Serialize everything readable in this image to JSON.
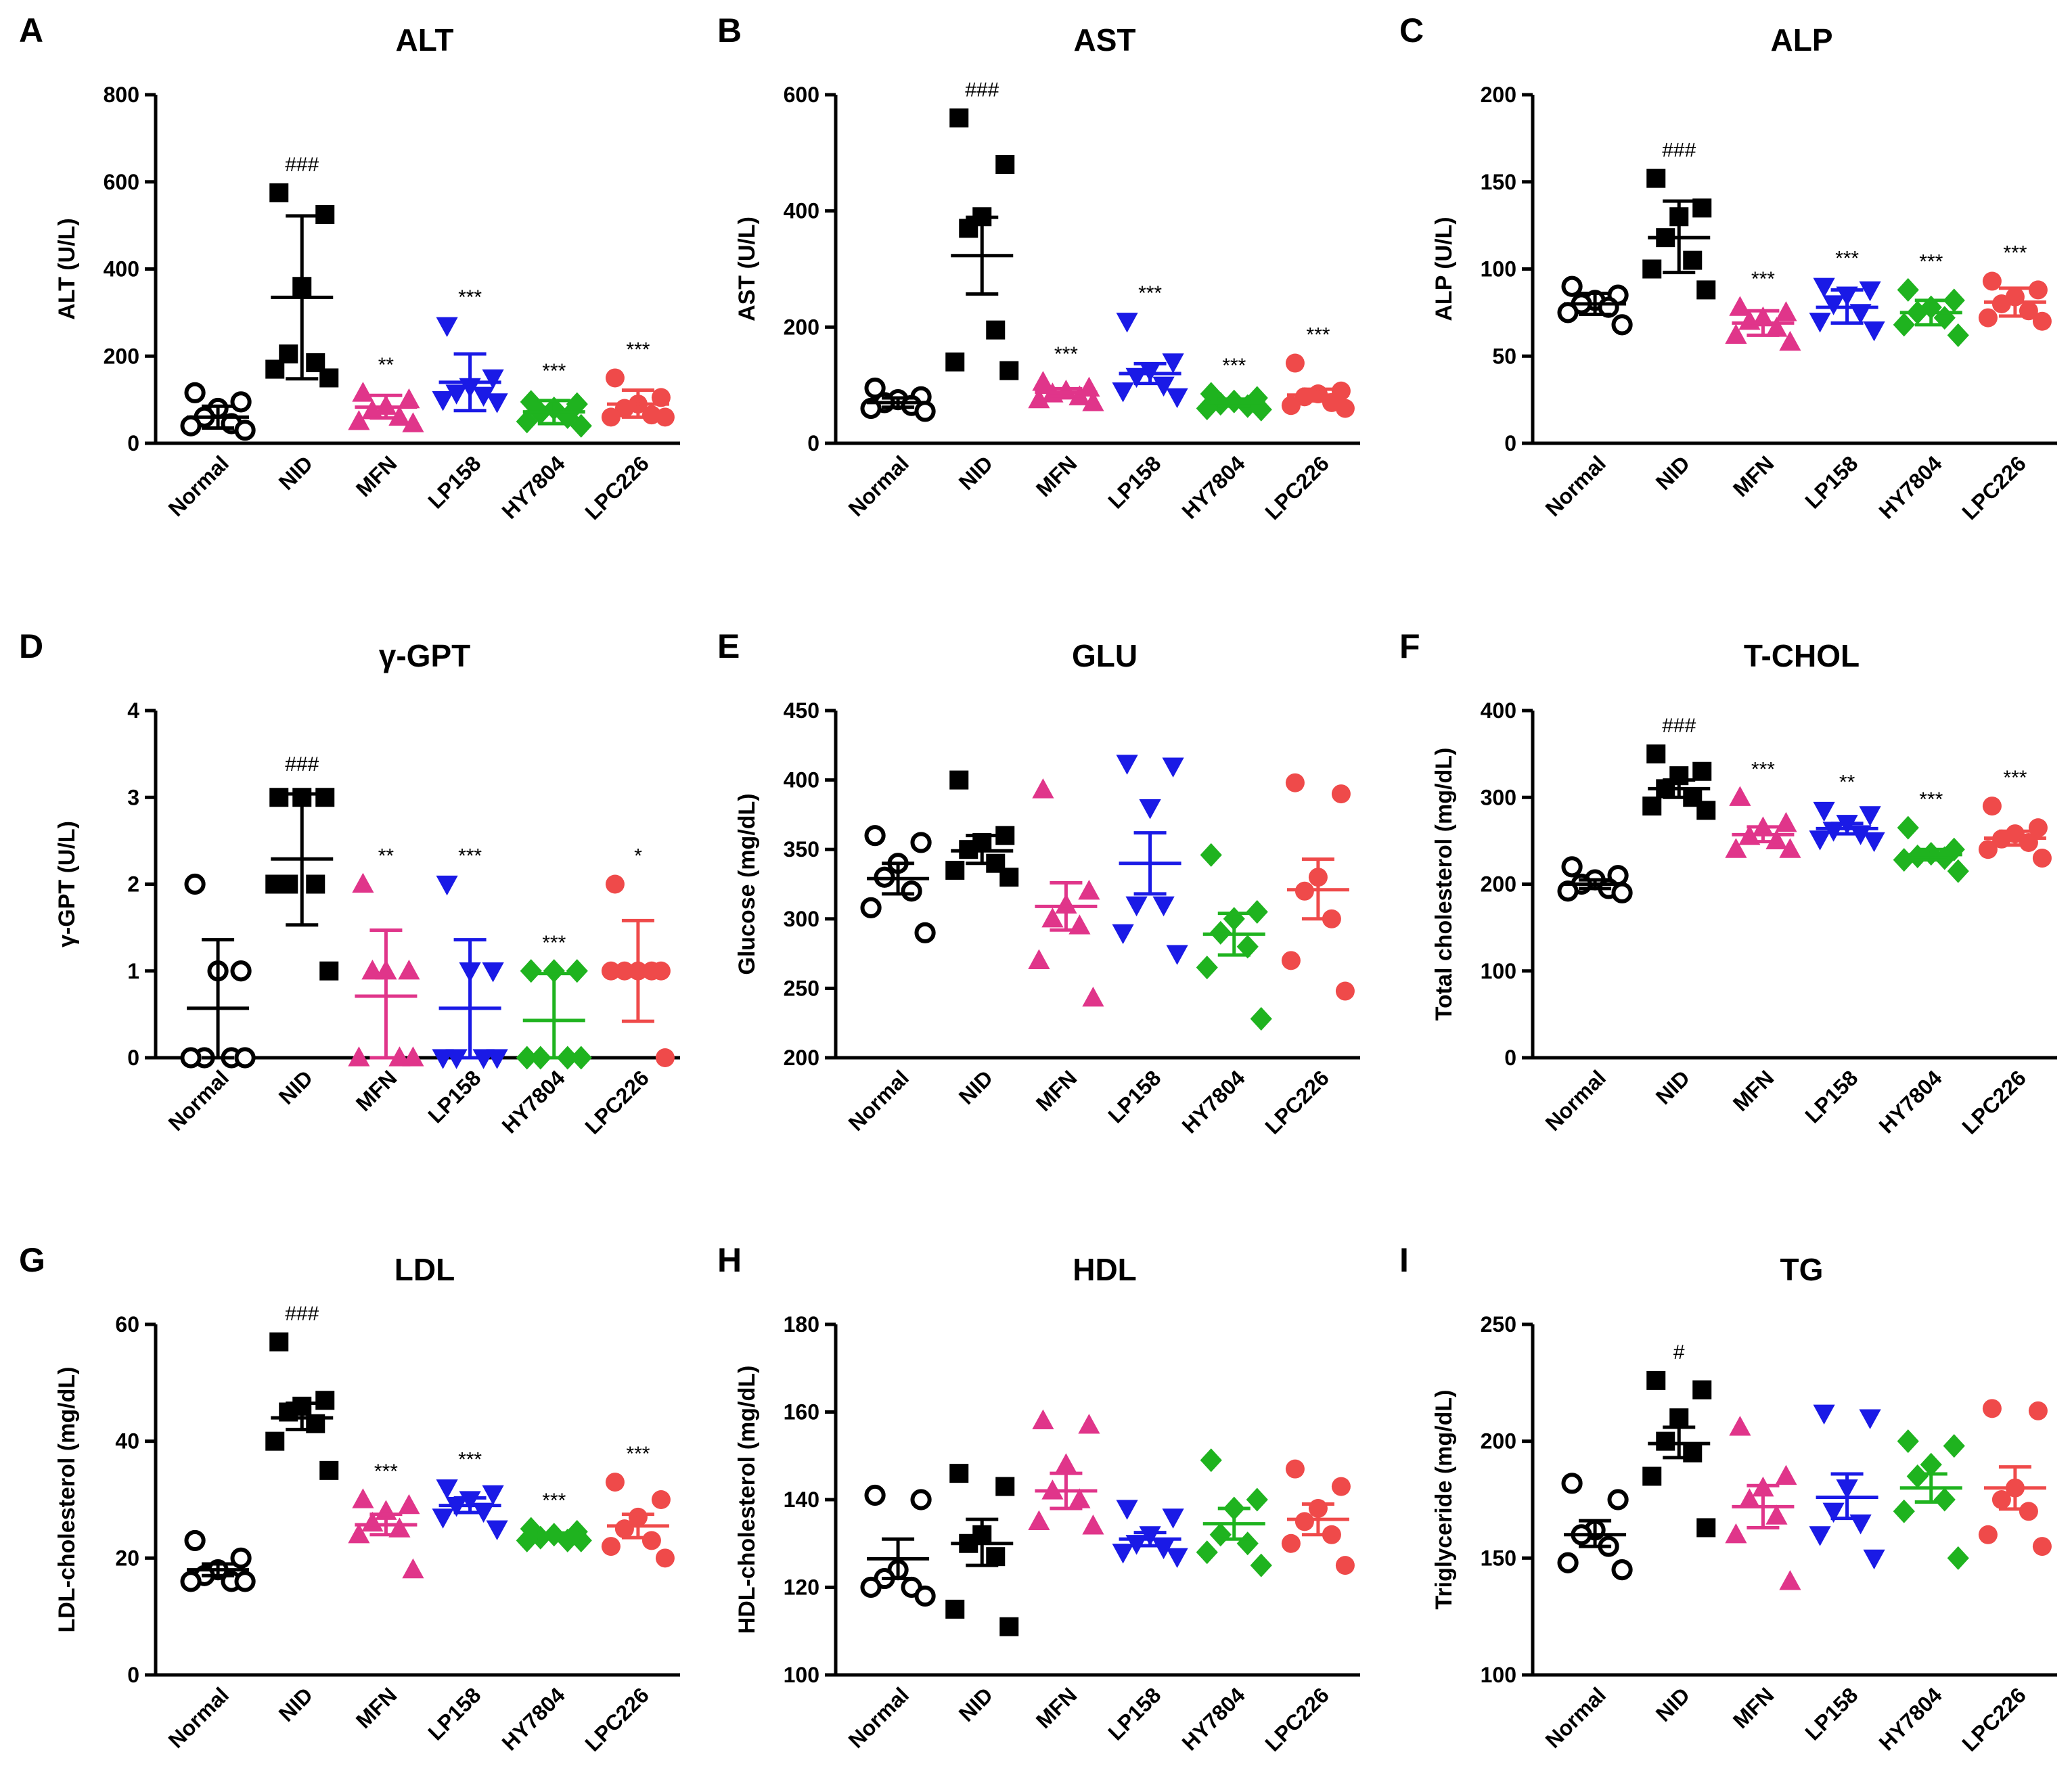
{
  "colors": {
    "Normal": "#000000",
    "NID": "#000000",
    "MFN": "#e0358a",
    "LP158": "#1a1ae6",
    "HY7804": "#1fb31f",
    "LPC226": "#ef4a4a"
  },
  "markers": {
    "Normal": "circle-open",
    "NID": "square",
    "MFN": "triangle-up",
    "LP158": "triangle-down",
    "HY7804": "diamond",
    "LPC226": "circle-filled"
  },
  "chart_data": [
    {
      "panel": "A",
      "type": "scatter",
      "title": "ALT",
      "ylabel": "ALT (U/L)",
      "ylim": [
        0,
        800
      ],
      "yticks": [
        0,
        200,
        400,
        600,
        800
      ],
      "categories": [
        "Normal",
        "NID",
        "MFN",
        "LP158",
        "HY7804",
        "LPC226"
      ],
      "series": [
        {
          "name": "Normal",
          "points": [
            116,
            95,
            80,
            60,
            45,
            40,
            30
          ],
          "mean": 60,
          "err_low": 35,
          "err_high": 85,
          "sig": ""
        },
        {
          "name": "NID",
          "points": [
            575,
            525,
            360,
            205,
            185,
            170,
            150
          ],
          "mean": 335,
          "err_low": 148,
          "err_high": 522,
          "sig": "###"
        },
        {
          "name": "MFN",
          "points": [
            115,
            100,
            85,
            75,
            60,
            50,
            45
          ],
          "mean": 83,
          "err_low": 58,
          "err_high": 110,
          "sig": "**"
        },
        {
          "name": "LP158",
          "points": [
            270,
            150,
            130,
            115,
            110,
            100,
            95
          ],
          "mean": 140,
          "err_low": 75,
          "err_high": 205,
          "sig": "***"
        },
        {
          "name": "HY7804",
          "points": [
            95,
            90,
            80,
            70,
            60,
            50,
            40
          ],
          "mean": 72,
          "err_low": 45,
          "err_high": 98,
          "sig": "***"
        },
        {
          "name": "LPC226",
          "points": [
            150,
            105,
            90,
            80,
            65,
            60,
            60
          ],
          "mean": 90,
          "err_low": 60,
          "err_high": 122,
          "sig": "***"
        }
      ]
    },
    {
      "panel": "B",
      "type": "scatter",
      "title": "AST",
      "ylabel": "AST (U/L)",
      "ylim": [
        0,
        600
      ],
      "yticks": [
        0,
        200,
        400,
        600
      ],
      "categories": [
        "Normal",
        "NID",
        "MFN",
        "LP158",
        "HY7804",
        "LPC226"
      ],
      "series": [
        {
          "name": "Normal",
          "points": [
            95,
            80,
            75,
            70,
            65,
            60,
            55
          ],
          "mean": 70,
          "err_low": 62,
          "err_high": 78,
          "sig": ""
        },
        {
          "name": "NID",
          "points": [
            560,
            480,
            390,
            370,
            195,
            140,
            125
          ],
          "mean": 323,
          "err_low": 257,
          "err_high": 389,
          "sig": "###"
        },
        {
          "name": "MFN",
          "points": [
            105,
            95,
            90,
            85,
            80,
            75,
            70
          ],
          "mean": 88,
          "err_low": 82,
          "err_high": 94,
          "sig": "***"
        },
        {
          "name": "LP158",
          "points": [
            210,
            140,
            125,
            115,
            100,
            90,
            80
          ],
          "mean": 120,
          "err_low": 103,
          "err_high": 137,
          "sig": "***"
        },
        {
          "name": "HY7804",
          "points": [
            85,
            78,
            72,
            68,
            64,
            60,
            58
          ],
          "mean": 70,
          "err_low": 64,
          "err_high": 76,
          "sig": "***"
        },
        {
          "name": "LPC226",
          "points": [
            138,
            90,
            85,
            80,
            70,
            65,
            60
          ],
          "mean": 83,
          "err_low": 73,
          "err_high": 93,
          "sig": "***"
        }
      ]
    },
    {
      "panel": "C",
      "type": "scatter",
      "title": "ALP",
      "ylabel": "ALP (U/L)",
      "ylim": [
        0,
        200
      ],
      "yticks": [
        0,
        50,
        100,
        150,
        200
      ],
      "categories": [
        "Normal",
        "NID",
        "MFN",
        "LP158",
        "HY7804",
        "LPC226"
      ],
      "series": [
        {
          "name": "Normal",
          "points": [
            90,
            85,
            82,
            80,
            78,
            75,
            68
          ],
          "mean": 80,
          "err_low": 74,
          "err_high": 86,
          "sig": ""
        },
        {
          "name": "NID",
          "points": [
            152,
            135,
            130,
            118,
            105,
            100,
            88
          ],
          "mean": 118,
          "err_low": 98,
          "err_high": 139,
          "sig": "###"
        },
        {
          "name": "MFN",
          "points": [
            78,
            75,
            72,
            70,
            66,
            62,
            58
          ],
          "mean": 69,
          "err_low": 62,
          "err_high": 76,
          "sig": "***"
        },
        {
          "name": "LP158",
          "points": [
            90,
            88,
            85,
            80,
            75,
            70,
            65
          ],
          "mean": 78,
          "err_low": 69,
          "err_high": 88,
          "sig": "***"
        },
        {
          "name": "HY7804",
          "points": [
            88,
            82,
            78,
            75,
            72,
            68,
            62
          ],
          "mean": 75,
          "err_low": 68,
          "err_high": 82,
          "sig": "***"
        },
        {
          "name": "LPC226",
          "points": [
            93,
            88,
            84,
            80,
            76,
            72,
            70
          ],
          "mean": 81,
          "err_low": 73,
          "err_high": 89,
          "sig": "***"
        }
      ]
    },
    {
      "panel": "D",
      "type": "scatter",
      "title": "γ-GPT",
      "ylabel": "γ-GPT (U/L)",
      "ylim": [
        0,
        4
      ],
      "yticks": [
        0,
        1,
        2,
        3,
        4
      ],
      "categories": [
        "Normal",
        "NID",
        "MFN",
        "LP158",
        "HY7804",
        "LPC226"
      ],
      "series": [
        {
          "name": "Normal",
          "points": [
            2,
            1,
            1,
            0,
            0,
            0,
            0
          ],
          "mean": 0.57,
          "err_low": 0,
          "err_high": 1.36,
          "sig": ""
        },
        {
          "name": "NID",
          "points": [
            3,
            3,
            3,
            2,
            2,
            2,
            1
          ],
          "mean": 2.29,
          "err_low": 1.53,
          "err_high": 3.04,
          "sig": "###"
        },
        {
          "name": "MFN",
          "points": [
            2,
            1,
            1,
            1,
            0,
            0,
            0
          ],
          "mean": 0.71,
          "err_low": 0,
          "err_high": 1.47,
          "sig": "**"
        },
        {
          "name": "LP158",
          "points": [
            2,
            1,
            1,
            0,
            0,
            0,
            0
          ],
          "mean": 0.57,
          "err_low": 0,
          "err_high": 1.36,
          "sig": "***"
        },
        {
          "name": "HY7804",
          "points": [
            1,
            1,
            1,
            0,
            0,
            0,
            0
          ],
          "mean": 0.43,
          "err_low": 0,
          "err_high": 0.97,
          "sig": "***"
        },
        {
          "name": "LPC226",
          "points": [
            2,
            1,
            1,
            1,
            1,
            1,
            0
          ],
          "mean": 1.0,
          "err_low": 0.42,
          "err_high": 1.58,
          "sig": "*"
        }
      ]
    },
    {
      "panel": "E",
      "type": "scatter",
      "title": "GLU",
      "ylabel": "Glucose (mg/dL)",
      "ylim": [
        200,
        450
      ],
      "yticks": [
        200,
        250,
        300,
        350,
        400,
        450
      ],
      "categories": [
        "Normal",
        "NID",
        "MFN",
        "LP158",
        "HY7804",
        "LPC226"
      ],
      "series": [
        {
          "name": "Normal",
          "points": [
            360,
            355,
            340,
            330,
            320,
            308,
            290
          ],
          "mean": 329,
          "err_low": 318,
          "err_high": 340,
          "sig": ""
        },
        {
          "name": "NID",
          "points": [
            400,
            360,
            355,
            350,
            340,
            335,
            330
          ],
          "mean": 349,
          "err_low": 340,
          "err_high": 360,
          "sig": ""
        },
        {
          "name": "MFN",
          "points": [
            393,
            320,
            310,
            300,
            295,
            270,
            243
          ],
          "mean": 309,
          "err_low": 292,
          "err_high": 326,
          "sig": ""
        },
        {
          "name": "LP158",
          "points": [
            412,
            410,
            380,
            310,
            310,
            290,
            275
          ],
          "mean": 340,
          "err_low": 318,
          "err_high": 362,
          "sig": ""
        },
        {
          "name": "HY7804",
          "points": [
            346,
            305,
            300,
            290,
            280,
            265,
            228
          ],
          "mean": 289,
          "err_low": 274,
          "err_high": 304,
          "sig": ""
        },
        {
          "name": "LPC226",
          "points": [
            398,
            390,
            330,
            320,
            300,
            270,
            248
          ],
          "mean": 321,
          "err_low": 300,
          "err_high": 343,
          "sig": ""
        }
      ]
    },
    {
      "panel": "F",
      "type": "scatter",
      "title": "T-CHOL",
      "ylabel": "Total cholesterol (mg/dL)",
      "ylim": [
        0,
        400
      ],
      "yticks": [
        0,
        100,
        200,
        300,
        400
      ],
      "categories": [
        "Normal",
        "NID",
        "MFN",
        "LP158",
        "HY7804",
        "LPC226"
      ],
      "series": [
        {
          "name": "Normal",
          "points": [
            220,
            210,
            205,
            200,
            195,
            192,
            190
          ],
          "mean": 200,
          "err_low": 195,
          "err_high": 205,
          "sig": ""
        },
        {
          "name": "NID",
          "points": [
            350,
            330,
            325,
            310,
            300,
            290,
            285
          ],
          "mean": 310,
          "err_low": 300,
          "err_high": 320,
          "sig": "###"
        },
        {
          "name": "MFN",
          "points": [
            300,
            270,
            265,
            255,
            250,
            240,
            240
          ],
          "mean": 257,
          "err_low": 249,
          "err_high": 266,
          "sig": "***"
        },
        {
          "name": "LP158",
          "points": [
            285,
            280,
            270,
            262,
            258,
            252,
            250
          ],
          "mean": 264,
          "err_low": 258,
          "err_high": 270,
          "sig": "**"
        },
        {
          "name": "HY7804",
          "points": [
            265,
            240,
            235,
            232,
            230,
            228,
            215
          ],
          "mean": 234,
          "err_low": 228,
          "err_high": 240,
          "sig": "***"
        },
        {
          "name": "LPC226",
          "points": [
            290,
            265,
            258,
            252,
            248,
            240,
            230
          ],
          "mean": 253,
          "err_low": 245,
          "err_high": 261,
          "sig": "***"
        }
      ]
    },
    {
      "panel": "G",
      "type": "scatter",
      "title": "LDL",
      "ylabel": "LDL-cholesterol (mg/dL)",
      "ylim": [
        0,
        60
      ],
      "yticks": [
        0,
        20,
        40,
        60
      ],
      "categories": [
        "Normal",
        "NID",
        "MFN",
        "LP158",
        "HY7804",
        "LPC226"
      ],
      "series": [
        {
          "name": "Normal",
          "points": [
            23,
            20,
            18,
            17,
            16,
            16,
            16
          ],
          "mean": 18,
          "err_low": 17,
          "err_high": 19,
          "sig": ""
        },
        {
          "name": "NID",
          "points": [
            57,
            47,
            46,
            45,
            43,
            40,
            35
          ],
          "mean": 44,
          "err_low": 42,
          "err_high": 46.5,
          "sig": "###"
        },
        {
          "name": "MFN",
          "points": [
            30,
            29,
            28,
            26,
            25,
            24,
            18
          ],
          "mean": 25.7,
          "err_low": 24,
          "err_high": 27.5,
          "sig": "***"
        },
        {
          "name": "LP158",
          "points": [
            32,
            31,
            30,
            29,
            28,
            27,
            25
          ],
          "mean": 29,
          "err_low": 27.8,
          "err_high": 30.3,
          "sig": "***"
        },
        {
          "name": "HY7804",
          "points": [
            25,
            24.5,
            24,
            23.5,
            23,
            23,
            23
          ],
          "mean": 23.8,
          "err_low": 23.3,
          "err_high": 24.3,
          "sig": "***"
        },
        {
          "name": "LPC226",
          "points": [
            33,
            30,
            27,
            25,
            23,
            22,
            20
          ],
          "mean": 25.5,
          "err_low": 23.5,
          "err_high": 27.5,
          "sig": "***"
        }
      ]
    },
    {
      "panel": "H",
      "type": "scatter",
      "title": "HDL",
      "ylabel": "HDL-cholesterol (mg/dL)",
      "ylim": [
        100,
        180
      ],
      "yticks": [
        100,
        120,
        140,
        160,
        180
      ],
      "categories": [
        "Normal",
        "NID",
        "MFN",
        "LP158",
        "HY7804",
        "LPC226"
      ],
      "series": [
        {
          "name": "Normal",
          "points": [
            141,
            140,
            124,
            122,
            120,
            120,
            118
          ],
          "mean": 126.5,
          "err_low": 122,
          "err_high": 131,
          "sig": ""
        },
        {
          "name": "NID",
          "points": [
            146,
            143,
            132,
            130,
            127,
            115,
            111
          ],
          "mean": 130,
          "err_low": 125,
          "err_high": 135.5,
          "sig": ""
        },
        {
          "name": "MFN",
          "points": [
            158,
            157,
            148,
            142,
            140,
            135,
            134
          ],
          "mean": 142,
          "err_low": 138,
          "err_high": 146,
          "sig": ""
        },
        {
          "name": "LP158",
          "points": [
            138,
            136,
            132,
            130,
            129,
            128,
            127
          ],
          "mean": 131,
          "err_low": 129.5,
          "err_high": 132.5,
          "sig": ""
        },
        {
          "name": "HY7804",
          "points": [
            149,
            140,
            138,
            132,
            130,
            128,
            125
          ],
          "mean": 134.5,
          "err_low": 131,
          "err_high": 138,
          "sig": ""
        },
        {
          "name": "LPC226",
          "points": [
            147,
            143,
            138,
            135,
            132,
            130,
            125
          ],
          "mean": 135.5,
          "err_low": 132,
          "err_high": 139,
          "sig": ""
        }
      ]
    },
    {
      "panel": "I",
      "type": "scatter",
      "title": "TG",
      "ylabel": "Triglyceride (mg/dL)",
      "ylim": [
        100,
        250
      ],
      "yticks": [
        100,
        150,
        200,
        250
      ],
      "categories": [
        "Normal",
        "NID",
        "MFN",
        "LP158",
        "HY7804",
        "LPC226"
      ],
      "series": [
        {
          "name": "Normal",
          "points": [
            182,
            175,
            162,
            160,
            155,
            148,
            145
          ],
          "mean": 160,
          "err_low": 155,
          "err_high": 166,
          "sig": ""
        },
        {
          "name": "NID",
          "points": [
            226,
            222,
            210,
            200,
            195,
            185,
            163
          ],
          "mean": 199,
          "err_low": 193,
          "err_high": 206,
          "sig": "#"
        },
        {
          "name": "MFN",
          "points": [
            206,
            185,
            180,
            175,
            168,
            160,
            140
          ],
          "mean": 172,
          "err_low": 163,
          "err_high": 181,
          "sig": ""
        },
        {
          "name": "LP158",
          "points": [
            212,
            210,
            180,
            170,
            165,
            160,
            150
          ],
          "mean": 176,
          "err_low": 167,
          "err_high": 186,
          "sig": ""
        },
        {
          "name": "HY7804",
          "points": [
            200,
            198,
            190,
            185,
            175,
            170,
            150
          ],
          "mean": 180,
          "err_low": 174,
          "err_high": 186,
          "sig": ""
        },
        {
          "name": "LPC226",
          "points": [
            214,
            213,
            180,
            175,
            170,
            160,
            155
          ],
          "mean": 180,
          "err_low": 171,
          "err_high": 189,
          "sig": ""
        }
      ]
    }
  ]
}
